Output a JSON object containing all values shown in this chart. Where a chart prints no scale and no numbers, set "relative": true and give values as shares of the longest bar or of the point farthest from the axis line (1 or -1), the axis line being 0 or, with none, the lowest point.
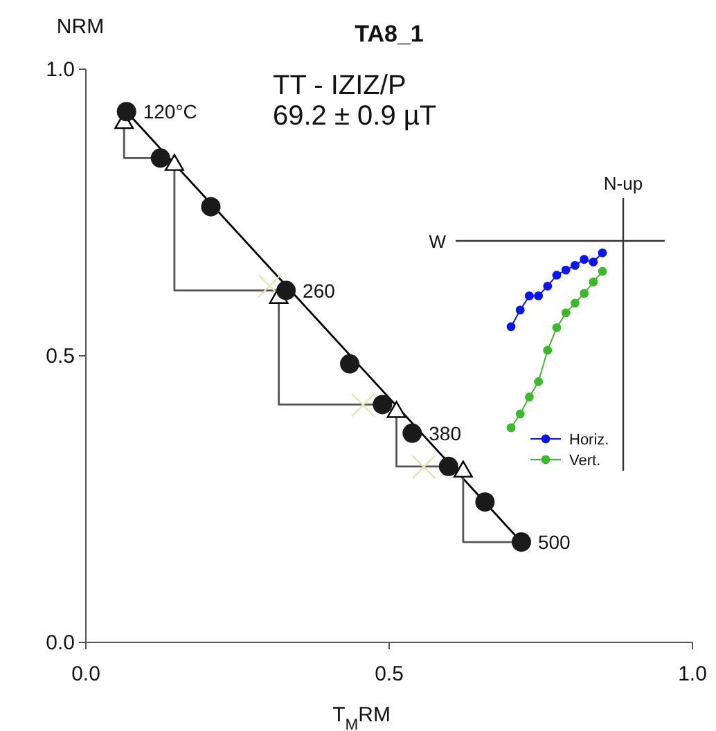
{
  "chart_data": [
    {
      "type": "scatter",
      "title": "TA8_1",
      "xlabel": "T$_{M}$RM",
      "ylabel": "NRM",
      "xlim": [
        0,
        1
      ],
      "ylim": [
        0,
        1
      ],
      "xticks": [
        {
          "value": 0,
          "label": "0.0"
        },
        0.5,
        {
          "value": 1,
          "label": "1.0"
        }
      ],
      "yticks": [
        {
          "value": 0,
          "label": "0.0"
        },
        0.5,
        {
          "value": 1,
          "label": "1.0"
        }
      ],
      "annotations": [
        "TT - IZIZ/P",
        "69.2 ± 0.9 µT",
        {
          "text": "120°C",
          "x": 0.067,
          "y": 0.926
        },
        {
          "text": "260",
          "x": 0.33,
          "y": 0.614
        },
        {
          "text": "380",
          "x": 0.538,
          "y": 0.365
        },
        {
          "text": "500",
          "x": 0.718,
          "y": 0.175
        }
      ],
      "series": [
        {
          "type": "line",
          "color": "#000000",
          "marker": "none",
          "x": [
            0.067,
            0.718
          ],
          "values": [
            0.926,
            0.175
          ]
        },
        {
          "type": "line",
          "color": "#555555",
          "marker": "none",
          "x": [
            0.063,
            0.063,
            0.123,
            null,
            0.146,
            0.146,
            0.33,
            null,
            0.318,
            0.318,
            0.489,
            null,
            0.512,
            0.512,
            0.598,
            null,
            0.622,
            0.622,
            0.718
          ],
          "values": [
            0.906,
            0.845,
            0.845,
            null,
            0.833,
            0.614,
            0.614,
            null,
            0.601,
            0.415,
            0.415,
            null,
            0.402,
            0.307,
            0.307,
            null,
            0.298,
            0.175,
            0.175
          ]
        },
        {
          "type": "scatter",
          "color": "#e4e4b4",
          "marker": "cross",
          "x": [
            0.303,
            0.457,
            0.557
          ],
          "values": [
            0.622,
            0.414,
            0.306
          ]
        },
        {
          "type": "scatter",
          "color": "#000000",
          "marker": "triangle",
          "x": [
            0.063,
            0.146,
            0.318,
            0.512,
            0.622
          ],
          "values": [
            0.906,
            0.833,
            0.601,
            0.402,
            0.298
          ]
        },
        {
          "type": "scatter",
          "color": "#1a1a1a",
          "marker": "circle",
          "x": [
            0.067,
            0.123,
            0.206,
            0.33,
            0.435,
            0.489,
            0.538,
            0.598,
            0.658,
            0.718
          ],
          "values": [
            0.926,
            0.845,
            0.76,
            0.614,
            0.486,
            0.415,
            0.365,
            0.307,
            0.245,
            0.175
          ]
        }
      ]
    },
    {
      "type": "line",
      "relative": true,
      "legend": "bottom right",
      "annotations": [
        "W",
        "N-up"
      ],
      "categories": [
        null,
        null,
        null,
        null,
        null,
        null,
        null,
        null,
        null,
        null,
        null
      ],
      "series": [
        {
          "name": "Horiz.",
          "color": "#0a14f0",
          "marker": "circle",
          "values": [
            -0.459,
            -0.37,
            -0.294,
            -0.294,
            -0.242,
            -0.183,
            -0.156,
            -0.131,
            -0.099,
            -0.113,
            -0.064
          ]
        },
        {
          "name": "Vert.",
          "color": "#3cb82c",
          "marker": "circle",
          "values": [
            -1,
            -0.926,
            -0.835,
            -0.753,
            -0.585,
            -0.464,
            -0.385,
            -0.333,
            -0.281,
            -0.22,
            -0.163
          ]
        }
      ]
    }
  ]
}
